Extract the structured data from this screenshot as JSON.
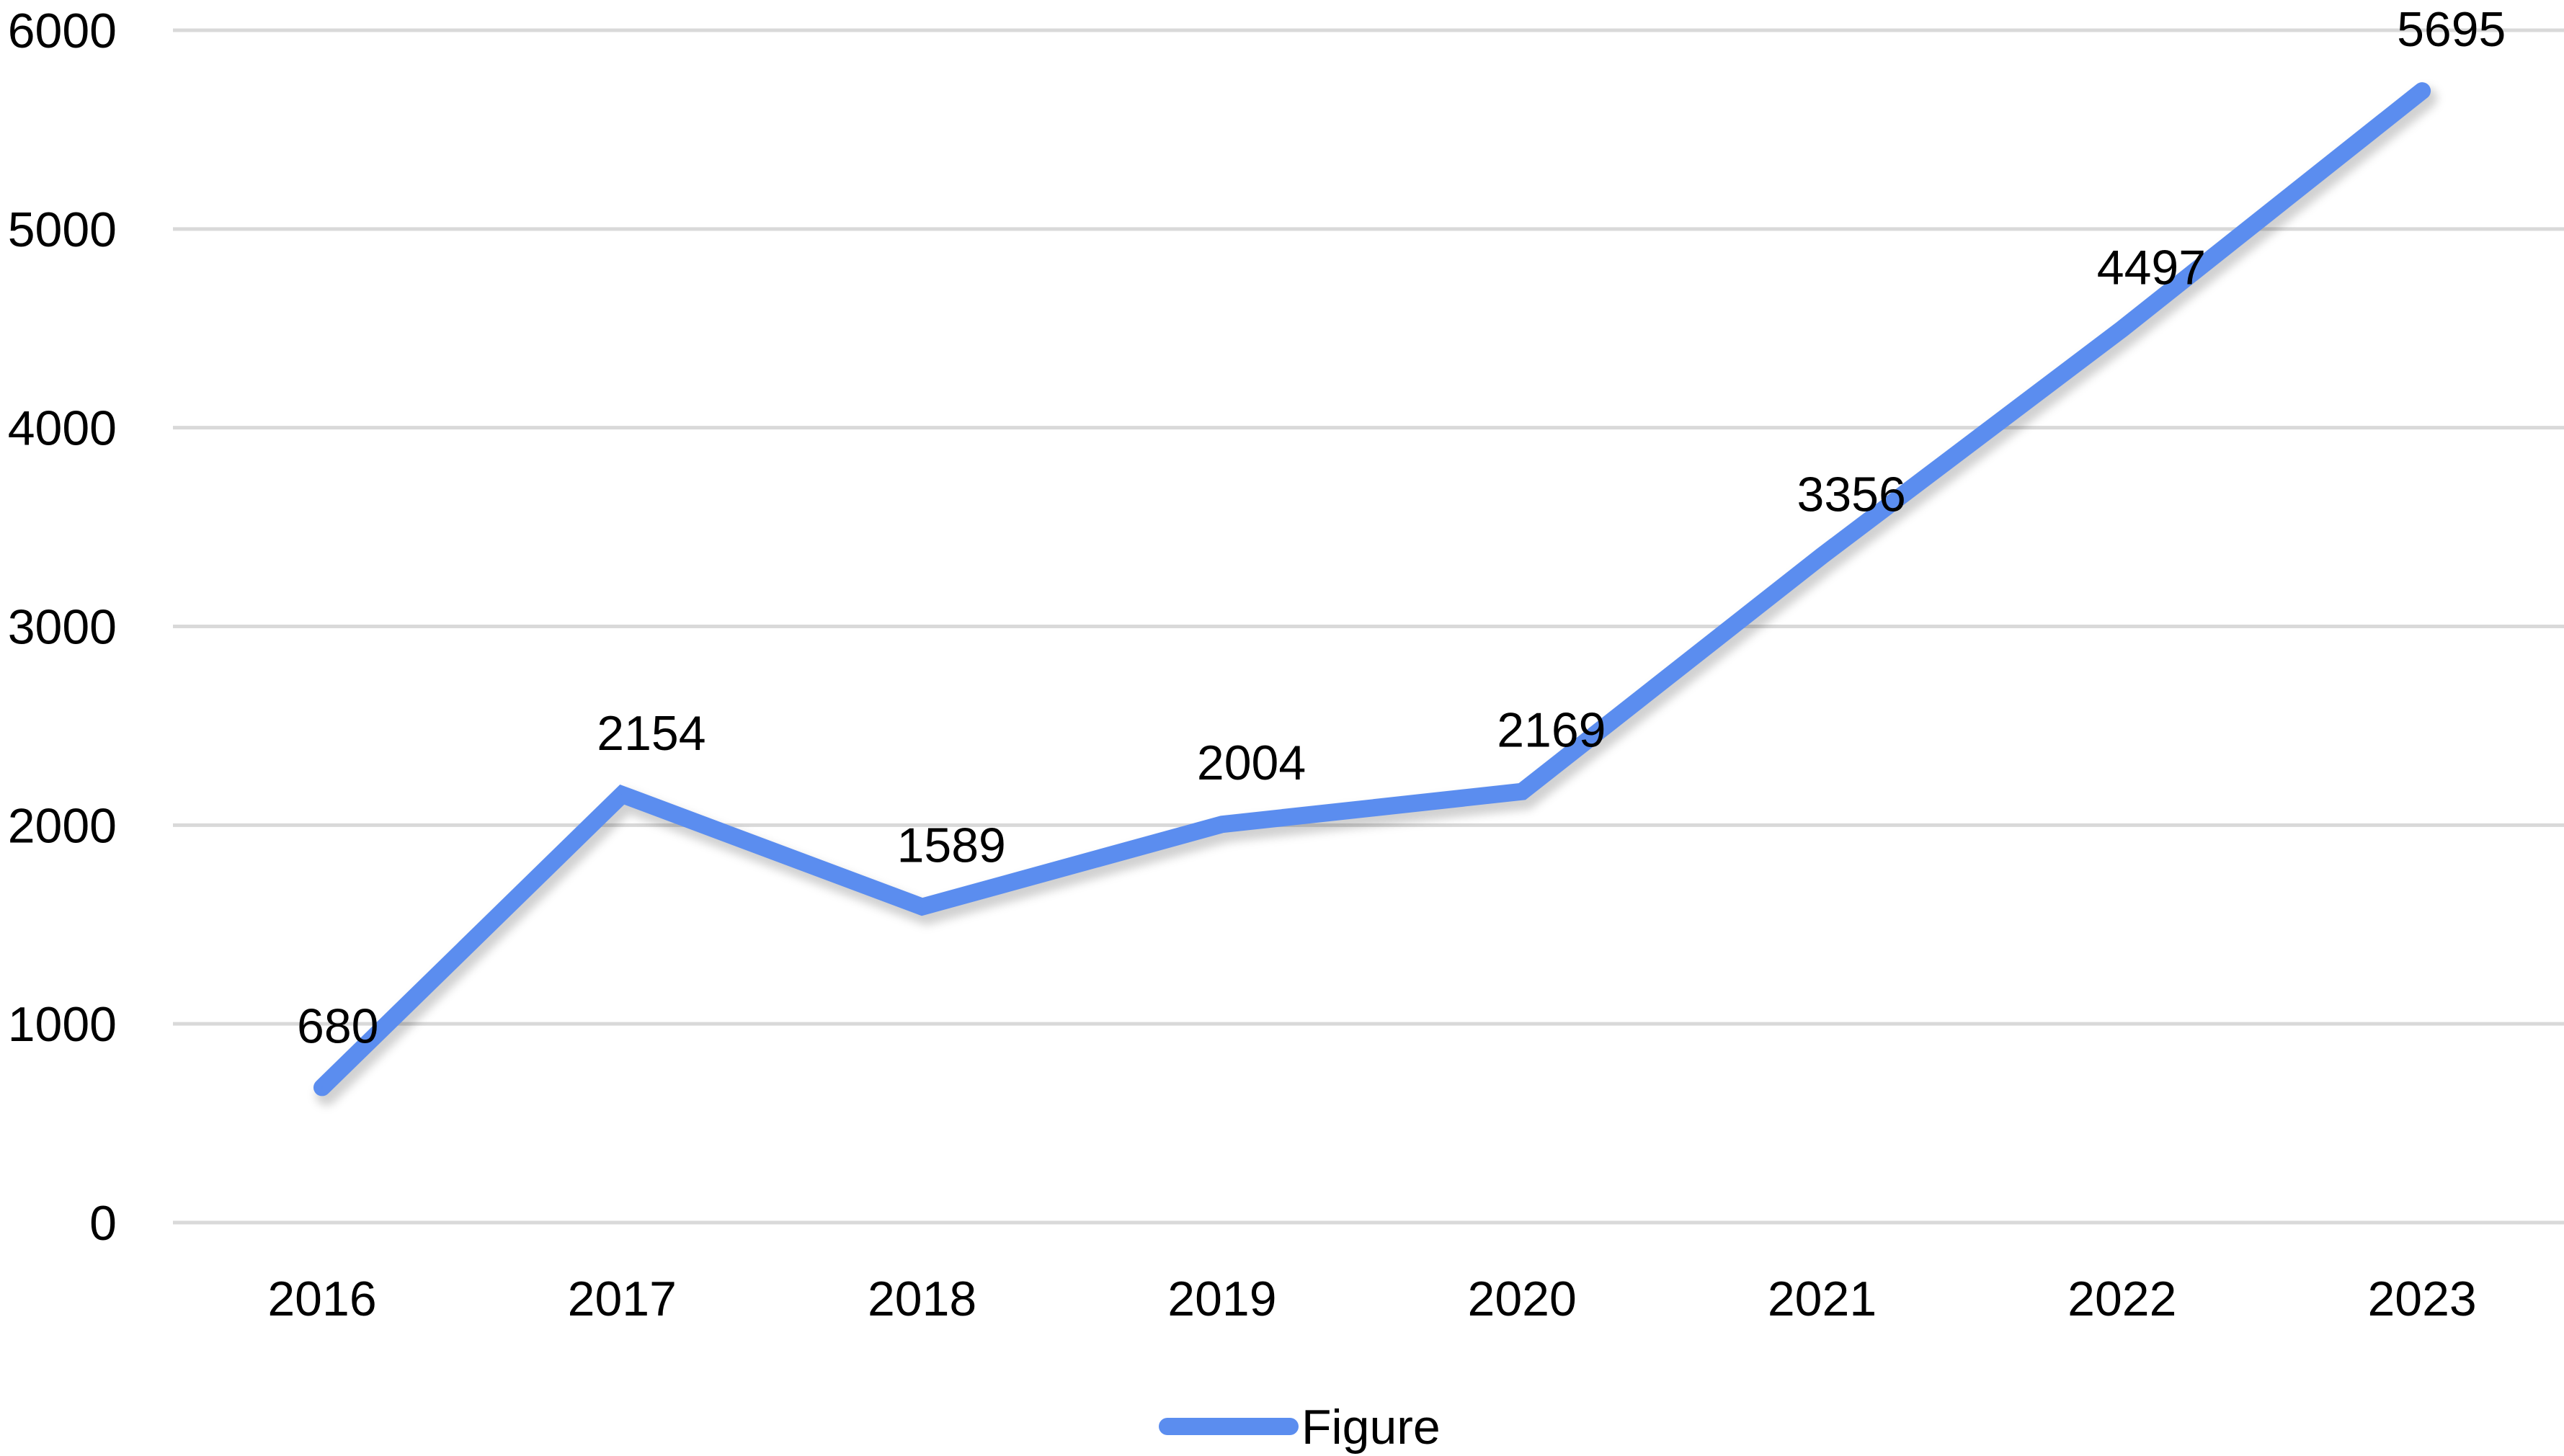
{
  "chart_data": {
    "type": "line",
    "categories": [
      "2016",
      "2017",
      "2018",
      "2019",
      "2020",
      "2021",
      "2022",
      "2023"
    ],
    "series": [
      {
        "name": "Figure",
        "values": [
          680,
          2154,
          1589,
          2004,
          2169,
          3356,
          4497,
          5695
        ],
        "color": "#5b8def"
      }
    ],
    "y_ticks": [
      "0",
      "1000",
      "2000",
      "3000",
      "4000",
      "5000",
      "6000"
    ],
    "ylim": [
      0,
      6000
    ],
    "grid": true,
    "data_labels": true,
    "legend_position": "bottom"
  }
}
